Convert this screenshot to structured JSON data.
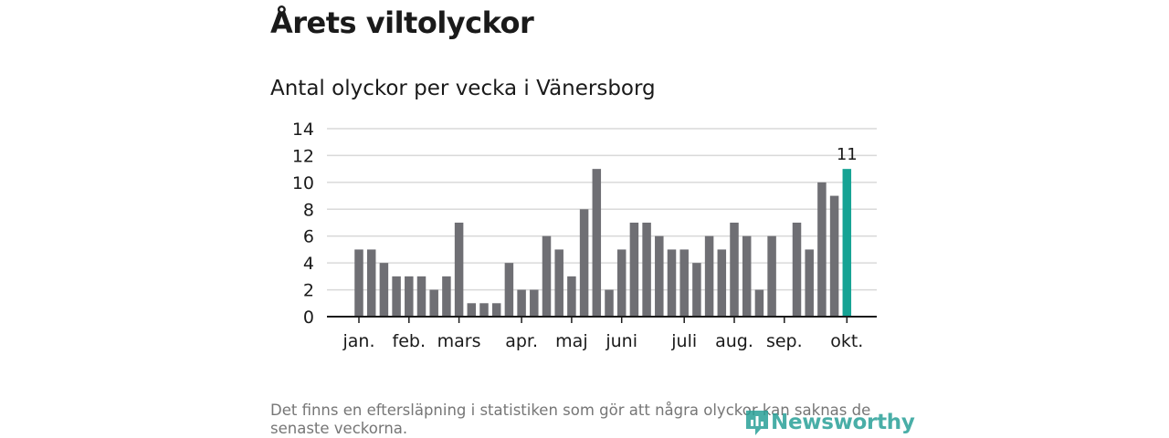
{
  "header": {
    "title": "Årets viltolyckor",
    "subtitle": "Antal olyckor per vecka i Vänersborg"
  },
  "chart_data": {
    "type": "bar",
    "title": "",
    "xlabel": "",
    "ylabel": "",
    "ylim": [
      0,
      14
    ],
    "yticks": [
      0,
      2,
      4,
      6,
      8,
      10,
      12,
      14
    ],
    "grid": true,
    "values": [
      5,
      5,
      4,
      3,
      3,
      3,
      2,
      3,
      7,
      1,
      1,
      1,
      4,
      2,
      2,
      6,
      5,
      3,
      8,
      11,
      2,
      5,
      7,
      7,
      6,
      5,
      5,
      4,
      6,
      5,
      7,
      6,
      2,
      6,
      0,
      7,
      5,
      10,
      9,
      11
    ],
    "month_labels": [
      {
        "label": "jan.",
        "week": 0
      },
      {
        "label": "feb.",
        "week": 4
      },
      {
        "label": "mars",
        "week": 8
      },
      {
        "label": "apr.",
        "week": 13
      },
      {
        "label": "maj",
        "week": 17
      },
      {
        "label": "juni",
        "week": 21
      },
      {
        "label": "juli",
        "week": 26
      },
      {
        "label": "aug.",
        "week": 30
      },
      {
        "label": "sep.",
        "week": 34
      },
      {
        "label": "okt.",
        "week": 39
      }
    ],
    "highlight_index": 39,
    "highlight_label": "11",
    "colors": {
      "bar": "#6f6f74",
      "highlight": "#16a394",
      "grid": "#d9d9d9",
      "axis": "#1a1a1a"
    }
  },
  "footer": {
    "note": "Det finns en eftersläpning i statistiken som gör att några olyckor kan saknas de senaste veckorna.",
    "logo_text": "Newsworthy",
    "logo_icon": "newsworthy-logo-icon"
  }
}
